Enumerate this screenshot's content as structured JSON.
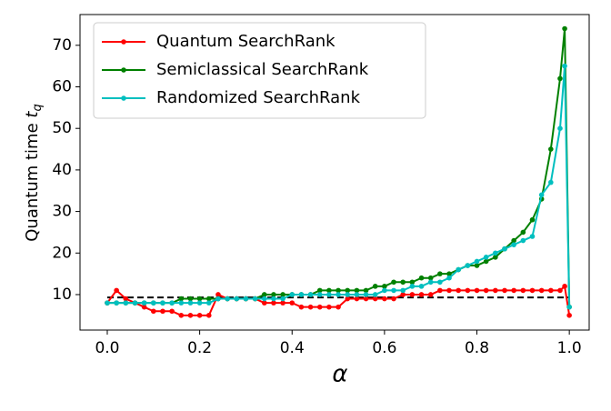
{
  "chart_data": {
    "type": "line",
    "xlabel": "α",
    "ylabel": "Quantum time",
    "ylabel_var": "t",
    "ylabel_sub": "q",
    "x": [
      0,
      0.02,
      0.04,
      0.06,
      0.08,
      0.1,
      0.12,
      0.14,
      0.16,
      0.18,
      0.2,
      0.22,
      0.24,
      0.26,
      0.28,
      0.3,
      0.32,
      0.34,
      0.36,
      0.38,
      0.4,
      0.42,
      0.44,
      0.46,
      0.48,
      0.5,
      0.52,
      0.54,
      0.56,
      0.58,
      0.6,
      0.62,
      0.64,
      0.66,
      0.68,
      0.7,
      0.72,
      0.74,
      0.76,
      0.78,
      0.8,
      0.82,
      0.84,
      0.86,
      0.88,
      0.9,
      0.92,
      0.94,
      0.96,
      0.98,
      0.99,
      1.0
    ],
    "series": [
      {
        "name": "Quantum SearchRank",
        "color": "#ff0000",
        "values": [
          8,
          11,
          9,
          8,
          7,
          6,
          6,
          6,
          5,
          5,
          5,
          5,
          10,
          9,
          9,
          9,
          9,
          8,
          8,
          8,
          8,
          7,
          7,
          7,
          7,
          7,
          9,
          9,
          9,
          9,
          9,
          9,
          10,
          10,
          10,
          10,
          11,
          11,
          11,
          11,
          11,
          11,
          11,
          11,
          11,
          11,
          11,
          11,
          11,
          11,
          12,
          5
        ]
      },
      {
        "name": "Semiclassical SearchRank",
        "color": "#008000",
        "values": [
          8,
          8,
          8,
          8,
          8,
          8,
          8,
          8,
          9,
          9,
          9,
          9,
          9,
          9,
          9,
          9,
          9,
          10,
          10,
          10,
          10,
          10,
          10,
          11,
          11,
          11,
          11,
          11,
          11,
          12,
          12,
          13,
          13,
          13,
          14,
          14,
          15,
          15,
          16,
          17,
          17,
          18,
          19,
          21,
          23,
          25,
          28,
          33,
          45,
          62,
          74,
          7
        ]
      },
      {
        "name": "Randomized SearchRank",
        "color": "#00bfbf",
        "values": [
          8,
          8,
          8,
          8,
          8,
          8,
          8,
          8,
          8,
          8,
          8,
          8,
          9,
          9,
          9,
          9,
          9,
          9,
          9,
          9,
          10,
          10,
          10,
          10,
          10,
          10,
          10,
          10,
          10,
          10,
          11,
          11,
          11,
          12,
          12,
          13,
          13,
          14,
          16,
          17,
          18,
          19,
          20,
          21,
          22,
          23,
          24,
          34,
          37,
          50,
          65,
          7
        ]
      }
    ],
    "hline": {
      "value": 9.3,
      "color": "#000000"
    },
    "xlim": [
      -0.059,
      1.043
    ],
    "ylim": [
      1.46,
      77.4
    ],
    "xticks": [
      {
        "value": 0,
        "label": "0.0"
      },
      0.2,
      0.4,
      0.6,
      0.8,
      {
        "value": 1,
        "label": "1.0"
      }
    ],
    "yticks": [
      10,
      20,
      30,
      40,
      50,
      60,
      70
    ],
    "legend": "upper left"
  }
}
